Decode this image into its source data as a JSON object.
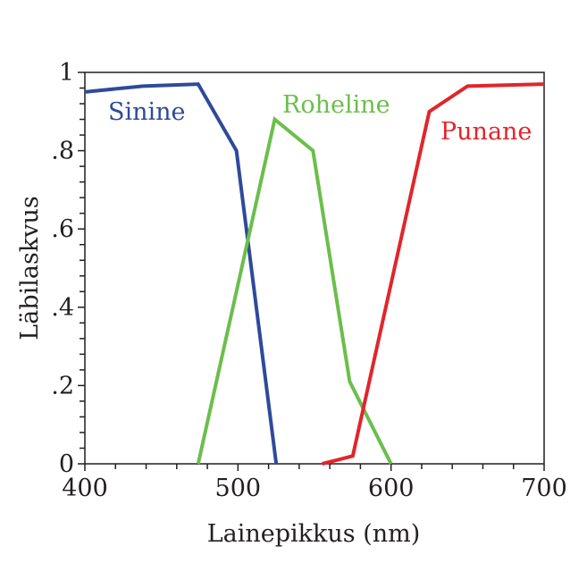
{
  "chart_data": {
    "type": "line",
    "title": "",
    "xlabel": "Lainepikkus (nm)",
    "ylabel": "Läbilaskvus",
    "xlim": [
      400,
      700
    ],
    "ylim": [
      0,
      1
    ],
    "x_ticks": [
      400,
      500,
      600,
      700
    ],
    "x_tick_labels": [
      "400",
      "500",
      "600",
      "700"
    ],
    "y_ticks": [
      0,
      0.2,
      0.4,
      0.6,
      0.8,
      1
    ],
    "y_tick_labels": [
      "0",
      ".2",
      ".4",
      ".6",
      ".8",
      "1"
    ],
    "grid": false,
    "series": [
      {
        "name": "Sinine",
        "color": "#2e4a9a",
        "x": [
          400,
          438,
          474,
          499,
          525
        ],
        "y": [
          0.95,
          0.965,
          0.97,
          0.8,
          0
        ]
      },
      {
        "name": "Roheline",
        "color": "#6abf4b",
        "x": [
          474,
          524,
          549,
          573,
          600
        ],
        "y": [
          0,
          0.88,
          0.8,
          0.21,
          0
        ]
      },
      {
        "name": "Punane",
        "color": "#e0262b",
        "x": [
          555,
          575,
          625,
          650,
          700
        ],
        "y": [
          0,
          0.02,
          0.9,
          0.965,
          0.97
        ]
      }
    ]
  }
}
